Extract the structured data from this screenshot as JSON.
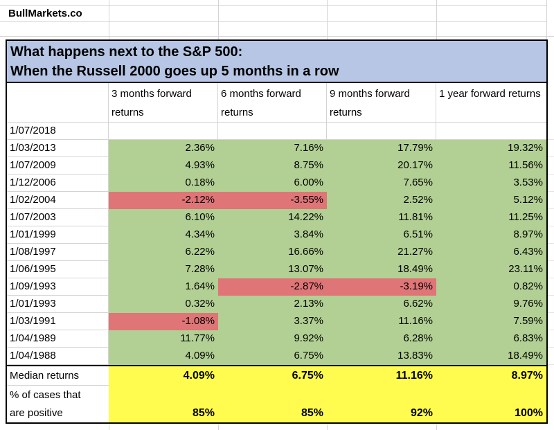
{
  "brand": {
    "name": "BullMarkets.co"
  },
  "title": {
    "line1": "What happens next to the S&P 500:",
    "line2": "When the Russell 2000 goes up 5 months in a row"
  },
  "table": {
    "columns": [
      "3 months forward returns",
      "6 months forward returns",
      "9 months forward returns",
      "1 year forward returns"
    ],
    "rows": [
      {
        "date": "1/07/2018",
        "values": [
          "",
          "",
          "",
          ""
        ]
      },
      {
        "date": "1/03/2013",
        "values": [
          "2.36%",
          "7.16%",
          "17.79%",
          "19.32%"
        ]
      },
      {
        "date": "1/07/2009",
        "values": [
          "4.93%",
          "8.75%",
          "20.17%",
          "11.56%"
        ]
      },
      {
        "date": "1/12/2006",
        "values": [
          "0.18%",
          "6.00%",
          "7.65%",
          "3.53%"
        ]
      },
      {
        "date": "1/02/2004",
        "values": [
          "-2.12%",
          "-3.55%",
          "2.52%",
          "5.12%"
        ]
      },
      {
        "date": "1/07/2003",
        "values": [
          "6.10%",
          "14.22%",
          "11.81%",
          "11.25%"
        ]
      },
      {
        "date": "1/01/1999",
        "values": [
          "4.34%",
          "3.84%",
          "6.51%",
          "8.97%"
        ]
      },
      {
        "date": "1/08/1997",
        "values": [
          "6.22%",
          "16.66%",
          "21.27%",
          "6.43%"
        ]
      },
      {
        "date": "1/06/1995",
        "values": [
          "7.28%",
          "13.07%",
          "18.49%",
          "23.11%"
        ]
      },
      {
        "date": "1/09/1993",
        "values": [
          "1.64%",
          "-2.87%",
          "-3.19%",
          "0.82%"
        ]
      },
      {
        "date": "1/01/1993",
        "values": [
          "0.32%",
          "2.13%",
          "6.62%",
          "9.76%"
        ]
      },
      {
        "date": "1/03/1991",
        "values": [
          "-1.08%",
          "3.37%",
          "11.16%",
          "7.59%"
        ]
      },
      {
        "date": "1/04/1989",
        "values": [
          "11.77%",
          "9.92%",
          "6.28%",
          "6.83%"
        ]
      },
      {
        "date": "1/04/1988",
        "values": [
          "4.09%",
          "6.75%",
          "13.83%",
          "18.49%"
        ]
      }
    ]
  },
  "footer": {
    "median_label": "Median returns",
    "median_values": [
      "4.09%",
      "6.75%",
      "11.16%",
      "8.97%"
    ],
    "positive_label_line1": "% of cases that",
    "positive_label_line2": "are positive",
    "positive_values": [
      "85%",
      "85%",
      "92%",
      "100%"
    ]
  },
  "colors": {
    "blue": "#b6c6e4",
    "green": "#b2cf94",
    "red": "#df7577",
    "yellow": "#fffb4f",
    "grid": "#d4d4d4",
    "border": "#000000"
  }
}
